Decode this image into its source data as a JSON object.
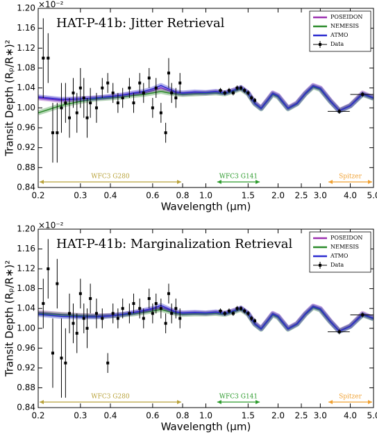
{
  "chart_data": [
    {
      "type": "line",
      "title": "HAT-P-41b: Jitter Retrieval",
      "xlabel": "Wavelength (μm)",
      "ylabel": "Transit Depth (Rₚ/R∗)²",
      "y_multiplier": "×10⁻²",
      "xscale": "log",
      "xlim": [
        0.2,
        5.0
      ],
      "ylim": [
        0.84,
        1.2
      ],
      "legend": "upper right",
      "xticks": [
        0.2,
        0.3,
        0.4,
        0.6,
        0.8,
        {
          "value": 1,
          "label": "1.0"
        },
        1.5,
        {
          "value": 2,
          "label": "2.0"
        },
        2.5,
        {
          "value": 3,
          "label": "3.0"
        },
        {
          "value": 4,
          "label": "4.0"
        },
        {
          "value": 5,
          "label": "5.0"
        }
      ],
      "yticks": [
        0.84,
        0.88,
        0.92,
        0.96,
        {
          "value": 1,
          "label": "1.00"
        },
        1.04,
        1.08,
        1.12,
        1.16,
        {
          "value": 1.2,
          "label": "1.20"
        }
      ],
      "series": [
        {
          "name": "POSEIDON",
          "color": "#9b30b0",
          "x": [
            0.2,
            0.25,
            0.3,
            0.35,
            0.4,
            0.45,
            0.5,
            0.55,
            0.6,
            0.65,
            0.7,
            0.75,
            0.8,
            0.9,
            1.0,
            1.1,
            1.2,
            1.3,
            1.4,
            1.5,
            1.6,
            1.7,
            1.8,
            1.9,
            2.0,
            2.2,
            2.4,
            2.6,
            2.8,
            3.0,
            3.3,
            3.6,
            4.0,
            4.5,
            5.0
          ],
          "values": [
            1.02,
            1.015,
            1.018,
            1.02,
            1.022,
            1.025,
            1.028,
            1.03,
            1.035,
            1.04,
            1.035,
            1.03,
            1.028,
            1.03,
            1.03,
            1.032,
            1.03,
            1.035,
            1.04,
            1.03,
            1.01,
            1.0,
            1.015,
            1.03,
            1.025,
            1.0,
            1.01,
            1.03,
            1.045,
            1.04,
            1.015,
            0.995,
            1.005,
            1.03,
            1.02
          ]
        },
        {
          "name": "NEMESIS",
          "color": "#2a8a2a",
          "x": [
            0.2,
            0.25,
            0.3,
            0.35,
            0.4,
            0.45,
            0.5,
            0.55,
            0.6,
            0.65,
            0.7,
            0.75,
            0.8,
            0.9,
            1.0,
            1.1,
            1.2,
            1.3,
            1.4,
            1.5,
            1.6,
            1.7,
            1.8,
            1.9,
            2.0,
            2.2,
            2.4,
            2.6,
            2.8,
            3.0,
            3.3,
            3.6,
            4.0,
            4.5,
            5.0
          ],
          "values": [
            0.99,
            1.005,
            1.013,
            1.018,
            1.02,
            1.022,
            1.025,
            1.027,
            1.03,
            1.033,
            1.03,
            1.028,
            1.027,
            1.028,
            1.029,
            1.03,
            1.028,
            1.033,
            1.038,
            1.028,
            1.008,
            0.998,
            1.013,
            1.027,
            1.022,
            0.998,
            1.008,
            1.028,
            1.042,
            1.037,
            1.013,
            0.994,
            1.004,
            1.027,
            1.019
          ]
        },
        {
          "name": "ATMO",
          "color": "#2b2bd0",
          "x": [
            0.2,
            0.25,
            0.3,
            0.35,
            0.4,
            0.45,
            0.5,
            0.55,
            0.6,
            0.65,
            0.7,
            0.75,
            0.8,
            0.9,
            1.0,
            1.1,
            1.2,
            1.3,
            1.4,
            1.5,
            1.6,
            1.7,
            1.8,
            1.9,
            2.0,
            2.2,
            2.4,
            2.6,
            2.8,
            3.0,
            3.3,
            3.6,
            4.0,
            4.5,
            5.0
          ],
          "values": [
            1.022,
            1.017,
            1.018,
            1.02,
            1.023,
            1.026,
            1.03,
            1.033,
            1.038,
            1.045,
            1.038,
            1.032,
            1.03,
            1.032,
            1.031,
            1.033,
            1.03,
            1.035,
            1.041,
            1.03,
            1.009,
            0.999,
            1.014,
            1.029,
            1.024,
            0.999,
            1.009,
            1.029,
            1.044,
            1.039,
            1.014,
            0.994,
            1.004,
            1.028,
            1.02
          ]
        },
        {
          "name": "Data",
          "color": "#000000",
          "style": "errorbar",
          "x": [
            0.21,
            0.22,
            0.23,
            0.24,
            0.25,
            0.26,
            0.27,
            0.28,
            0.29,
            0.3,
            0.31,
            0.32,
            0.33,
            0.35,
            0.37,
            0.39,
            0.41,
            0.43,
            0.45,
            0.48,
            0.5,
            0.53,
            0.55,
            0.58,
            0.6,
            0.62,
            0.65,
            0.68,
            0.7,
            0.72,
            0.75,
            0.78,
            1.15,
            1.2,
            1.25,
            1.3,
            1.35,
            1.4,
            1.45,
            1.5,
            1.55,
            1.6,
            3.6,
            4.5
          ],
          "values": [
            1.1,
            1.1,
            0.95,
            0.95,
            1.0,
            1.01,
            0.98,
            1.03,
            0.99,
            1.04,
            1.02,
            0.98,
            1.01,
            1.0,
            1.04,
            1.05,
            1.03,
            1.01,
            1.02,
            1.04,
            1.01,
            1.05,
            1.03,
            1.06,
            1.0,
            1.04,
            0.99,
            0.95,
            1.07,
            1.03,
            1.02,
            1.05,
            1.035,
            1.03,
            1.035,
            1.03,
            1.04,
            1.04,
            1.035,
            1.03,
            1.02,
            1.015,
            0.993,
            1.027
          ],
          "yerr": [
            0.08,
            0.05,
            0.06,
            0.06,
            0.05,
            0.04,
            0.04,
            0.03,
            0.04,
            0.04,
            0.04,
            0.04,
            0.03,
            0.03,
            0.02,
            0.02,
            0.02,
            0.02,
            0.02,
            0.02,
            0.02,
            0.02,
            0.02,
            0.02,
            0.02,
            0.02,
            0.02,
            0.02,
            0.03,
            0.02,
            0.02,
            0.02,
            0.005,
            0.005,
            0.005,
            0.005,
            0.005,
            0.005,
            0.005,
            0.005,
            0.005,
            0.005,
            0.005,
            0.005
          ],
          "xerr": [
            0.003,
            0.003,
            0.003,
            0.003,
            0.003,
            0.003,
            0.003,
            0.003,
            0.003,
            0.003,
            0.003,
            0.003,
            0.003,
            0.003,
            0.003,
            0.003,
            0.003,
            0.003,
            0.003,
            0.003,
            0.003,
            0.003,
            0.003,
            0.003,
            0.003,
            0.003,
            0.003,
            0.003,
            0.003,
            0.003,
            0.003,
            0.003,
            0.02,
            0.02,
            0.02,
            0.02,
            0.02,
            0.02,
            0.02,
            0.02,
            0.02,
            0.02,
            0.38,
            0.5
          ]
        }
      ],
      "bands": [
        {
          "label": "WFC3 G280",
          "range": [
            0.2,
            0.8
          ],
          "color": "#b8a23a"
        },
        {
          "label": "WFC3 G141",
          "range": [
            1.1,
            1.7
          ],
          "color": "#2a9a2a"
        },
        {
          "label": "Spitzer",
          "range": [
            3.2,
            5.0
          ],
          "color": "#f0a030"
        }
      ]
    },
    {
      "type": "line",
      "title": "HAT-P-41b: Marginalization Retrieval",
      "xlabel": "Wavelength (μm)",
      "ylabel": "Transit Depth (Rₚ/R∗)²",
      "y_multiplier": "×10⁻²",
      "xscale": "log",
      "xlim": [
        0.2,
        5.0
      ],
      "ylim": [
        0.84,
        1.2
      ],
      "legend": "upper right",
      "xticks": [
        0.2,
        0.3,
        0.4,
        0.6,
        0.8,
        {
          "value": 1,
          "label": "1.0"
        },
        1.5,
        {
          "value": 2,
          "label": "2.0"
        },
        2.5,
        {
          "value": 3,
          "label": "3.0"
        },
        {
          "value": 4,
          "label": "4.0"
        },
        {
          "value": 5,
          "label": "5.0"
        }
      ],
      "yticks": [
        0.84,
        0.88,
        0.92,
        0.96,
        {
          "value": 1,
          "label": "1.00"
        },
        1.04,
        1.08,
        1.12,
        1.16,
        {
          "value": 1.2,
          "label": "1.20"
        }
      ],
      "series": [
        {
          "name": "POSEIDON",
          "color": "#9b30b0",
          "x": [
            0.2,
            0.25,
            0.3,
            0.35,
            0.4,
            0.45,
            0.5,
            0.55,
            0.6,
            0.65,
            0.7,
            0.75,
            0.8,
            0.9,
            1.0,
            1.1,
            1.2,
            1.3,
            1.4,
            1.5,
            1.6,
            1.7,
            1.8,
            1.9,
            2.0,
            2.2,
            2.4,
            2.6,
            2.8,
            3.0,
            3.3,
            3.6,
            4.0,
            4.5,
            5.0
          ],
          "values": [
            1.032,
            1.028,
            1.026,
            1.025,
            1.026,
            1.028,
            1.031,
            1.034,
            1.038,
            1.042,
            1.037,
            1.032,
            1.03,
            1.031,
            1.03,
            1.032,
            1.03,
            1.035,
            1.04,
            1.03,
            1.01,
            1.0,
            1.015,
            1.03,
            1.025,
            1.0,
            1.01,
            1.03,
            1.045,
            1.04,
            1.015,
            0.995,
            1.005,
            1.03,
            1.02
          ]
        },
        {
          "name": "NEMESIS",
          "color": "#2a8a2a",
          "x": [
            0.2,
            0.25,
            0.3,
            0.35,
            0.4,
            0.45,
            0.5,
            0.55,
            0.6,
            0.65,
            0.7,
            0.75,
            0.8,
            0.9,
            1.0,
            1.1,
            1.2,
            1.3,
            1.4,
            1.5,
            1.6,
            1.7,
            1.8,
            1.9,
            2.0,
            2.2,
            2.4,
            2.6,
            2.8,
            3.0,
            3.3,
            3.6,
            4.0,
            4.5,
            5.0
          ],
          "values": [
            1.03,
            1.027,
            1.025,
            1.024,
            1.025,
            1.027,
            1.029,
            1.032,
            1.035,
            1.038,
            1.034,
            1.03,
            1.028,
            1.029,
            1.029,
            1.03,
            1.028,
            1.033,
            1.038,
            1.028,
            1.008,
            0.998,
            1.013,
            1.027,
            1.022,
            0.998,
            1.008,
            1.028,
            1.042,
            1.037,
            1.013,
            0.994,
            1.004,
            1.027,
            1.019
          ]
        },
        {
          "name": "ATMO",
          "color": "#2b2bd0",
          "x": [
            0.2,
            0.25,
            0.3,
            0.35,
            0.4,
            0.45,
            0.5,
            0.55,
            0.6,
            0.65,
            0.7,
            0.75,
            0.8,
            0.9,
            1.0,
            1.1,
            1.2,
            1.3,
            1.4,
            1.5,
            1.6,
            1.7,
            1.8,
            1.9,
            2.0,
            2.2,
            2.4,
            2.6,
            2.8,
            3.0,
            3.3,
            3.6,
            4.0,
            4.5,
            5.0
          ],
          "values": [
            1.028,
            1.024,
            1.023,
            1.023,
            1.025,
            1.028,
            1.032,
            1.036,
            1.04,
            1.046,
            1.039,
            1.033,
            1.031,
            1.032,
            1.031,
            1.033,
            1.03,
            1.035,
            1.041,
            1.03,
            1.009,
            0.999,
            1.014,
            1.029,
            1.024,
            0.999,
            1.009,
            1.029,
            1.044,
            1.039,
            1.014,
            0.994,
            1.004,
            1.028,
            1.02
          ]
        },
        {
          "name": "Data",
          "color": "#000000",
          "style": "errorbar",
          "x": [
            0.21,
            0.22,
            0.23,
            0.24,
            0.25,
            0.26,
            0.27,
            0.28,
            0.29,
            0.3,
            0.31,
            0.32,
            0.33,
            0.35,
            0.37,
            0.39,
            0.41,
            0.43,
            0.45,
            0.48,
            0.5,
            0.53,
            0.55,
            0.58,
            0.6,
            0.62,
            0.65,
            0.68,
            0.7,
            0.72,
            0.75,
            0.78,
            1.15,
            1.2,
            1.25,
            1.3,
            1.35,
            1.4,
            1.45,
            1.5,
            1.55,
            1.6,
            3.6,
            4.5
          ],
          "values": [
            1.05,
            1.12,
            0.95,
            1.09,
            0.94,
            0.93,
            1.03,
            1.01,
            0.99,
            1.07,
            1.02,
            1.0,
            1.06,
            1.03,
            1.02,
            0.93,
            1.03,
            1.02,
            1.04,
            1.03,
            1.05,
            1.04,
            1.02,
            1.06,
            1.03,
            1.05,
            1.04,
            1.01,
            1.07,
            1.03,
            1.04,
            1.02,
            1.035,
            1.03,
            1.035,
            1.03,
            1.04,
            1.04,
            1.035,
            1.03,
            1.02,
            1.015,
            0.993,
            1.027
          ],
          "yerr": [
            0.05,
            0.06,
            0.07,
            0.05,
            0.08,
            0.07,
            0.04,
            0.04,
            0.04,
            0.03,
            0.03,
            0.04,
            0.03,
            0.03,
            0.02,
            0.02,
            0.02,
            0.02,
            0.02,
            0.02,
            0.02,
            0.02,
            0.02,
            0.02,
            0.02,
            0.02,
            0.02,
            0.02,
            0.02,
            0.02,
            0.02,
            0.02,
            0.005,
            0.005,
            0.005,
            0.005,
            0.005,
            0.005,
            0.005,
            0.005,
            0.005,
            0.005,
            0.005,
            0.005
          ],
          "xerr": [
            0.003,
            0.003,
            0.003,
            0.003,
            0.003,
            0.003,
            0.003,
            0.003,
            0.003,
            0.003,
            0.003,
            0.003,
            0.003,
            0.003,
            0.003,
            0.003,
            0.003,
            0.003,
            0.003,
            0.003,
            0.003,
            0.003,
            0.003,
            0.003,
            0.003,
            0.003,
            0.003,
            0.003,
            0.003,
            0.003,
            0.003,
            0.003,
            0.02,
            0.02,
            0.02,
            0.02,
            0.02,
            0.02,
            0.02,
            0.02,
            0.02,
            0.02,
            0.38,
            0.5
          ]
        }
      ],
      "bands": [
        {
          "label": "WFC3 G280",
          "range": [
            0.2,
            0.8
          ],
          "color": "#b8a23a"
        },
        {
          "label": "WFC3 G141",
          "range": [
            1.1,
            1.7
          ],
          "color": "#2a9a2a"
        },
        {
          "label": "Spitzer",
          "range": [
            3.2,
            5.0
          ],
          "color": "#f0a030"
        }
      ]
    }
  ]
}
